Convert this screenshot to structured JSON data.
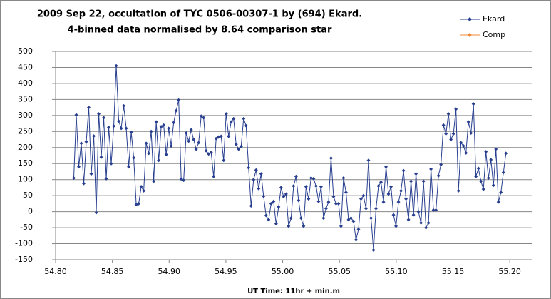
{
  "chart_data": {
    "type": "line",
    "title": "2009 Sep 22, occultation of TYC 0506-00307-1 by (694) Ekard.",
    "subtitle": "4-binned data normalised by 8.64 comparison star",
    "x_label": "UT Time: 11hr + min.m",
    "xlim": [
      54.8,
      55.22
    ],
    "xticks": [
      {
        "value": 54.8,
        "label": "54.80"
      },
      {
        "value": 54.85,
        "label": "54.85"
      },
      {
        "value": 54.9,
        "label": "54.90"
      },
      {
        "value": 54.95,
        "label": "54.95"
      },
      {
        "value": 55.0,
        "label": "55.00"
      },
      {
        "value": 55.05,
        "label": "55.05"
      },
      {
        "value": 55.1,
        "label": "55.10"
      },
      {
        "value": 55.15,
        "label": "55.15"
      },
      {
        "value": 55.2,
        "label": "55.20"
      }
    ],
    "ylim": [
      -150,
      500
    ],
    "yticks": [
      -150,
      -100,
      -50,
      0,
      50,
      100,
      150,
      200,
      250,
      300,
      350,
      400,
      450,
      500
    ],
    "grid": true,
    "legend": "top-right",
    "x": [
      54.816,
      54.8182,
      54.8204,
      54.8226,
      54.8248,
      54.827,
      54.8292,
      54.8314,
      54.8336,
      54.8358,
      54.838,
      54.8402,
      54.8424,
      54.8446,
      54.8468,
      54.849,
      54.8512,
      54.8534,
      54.8556,
      54.8578,
      54.86,
      54.8622,
      54.8644,
      54.8666,
      54.8688,
      54.871,
      54.8732,
      54.8754,
      54.8776,
      54.8798,
      54.882,
      54.8842,
      54.8864,
      54.8886,
      54.8908,
      54.893,
      54.8952,
      54.8974,
      54.8996,
      54.9018,
      54.904,
      54.9062,
      54.9084,
      54.9106,
      54.9128,
      54.915,
      54.9172,
      54.9194,
      54.9216,
      54.9238,
      54.926,
      54.9282,
      54.9304,
      54.9326,
      54.9348,
      54.937,
      54.9392,
      54.9414,
      54.9436,
      54.9458,
      54.948,
      54.9502,
      54.9524,
      54.9546,
      54.9568,
      54.959,
      54.9612,
      54.9634,
      54.9656,
      54.9678,
      54.97,
      54.9722,
      54.9744,
      54.9766,
      54.9788,
      54.981,
      54.9832,
      54.9854,
      54.9876,
      54.9898,
      54.992,
      54.9942,
      54.9964,
      54.9986,
      55.0008,
      55.003,
      55.0052,
      55.0074,
      55.0096,
      55.0118,
      55.014,
      55.0162,
      55.0184,
      55.0206,
      55.0228,
      55.025,
      55.0272,
      55.0294,
      55.0316,
      55.0338,
      55.036,
      55.0382,
      55.0404,
      55.0426,
      55.0448,
      55.047,
      55.0492,
      55.0514,
      55.0536,
      55.0558,
      55.058,
      55.0602,
      55.0624,
      55.0646,
      55.0668,
      55.069,
      55.0712,
      55.0734,
      55.0756,
      55.0778,
      55.08,
      55.0822,
      55.0844,
      55.0866,
      55.0888,
      55.091,
      55.0932,
      55.0954,
      55.0976,
      55.0998,
      55.102,
      55.1042,
      55.1064,
      55.1086,
      55.1108,
      55.113,
      55.1152,
      55.1174,
      55.1196,
      55.1218,
      55.124,
      55.1262,
      55.1284,
      55.1306,
      55.1328,
      55.135,
      55.1372,
      55.1394,
      55.1416,
      55.1438,
      55.146,
      55.1482,
      55.1504,
      55.1526,
      55.1548,
      55.157,
      55.1592,
      55.1614,
      55.1636,
      55.1658,
      55.168,
      55.1702,
      55.1724,
      55.1746,
      55.1768,
      55.179,
      55.1812,
      55.1834,
      55.1856,
      55.1878,
      55.19,
      55.1922,
      55.1944,
      55.1966
    ],
    "series": [
      {
        "name": "Ekard",
        "color": "#283f8f",
        "values": [
          105,
          302,
          140,
          213,
          88,
          218,
          325,
          118,
          236,
          -3,
          305,
          170,
          293,
          103,
          263,
          150,
          267,
          455,
          282,
          260,
          330,
          260,
          140,
          248,
          168,
          22,
          25,
          78,
          65,
          213,
          182,
          250,
          95,
          280,
          160,
          265,
          270,
          178,
          260,
          205,
          278,
          315,
          348,
          102,
          98,
          245,
          220,
          255,
          225,
          195,
          215,
          298,
          293,
          190,
          180,
          185,
          110,
          228,
          233,
          235,
          160,
          305,
          235,
          280,
          290,
          210,
          195,
          203,
          290,
          268,
          137,
          18,
          100,
          130,
          72,
          118,
          48,
          -12,
          -25,
          25,
          32,
          -38,
          15,
          75,
          47,
          55,
          -45,
          -20,
          80,
          110,
          35,
          -20,
          -45,
          78,
          40,
          105,
          103,
          80,
          32,
          78,
          -20,
          10,
          30,
          167,
          47,
          25,
          25,
          -45,
          105,
          60,
          -25,
          -20,
          -30,
          -88,
          -55,
          40,
          50,
          10,
          160,
          -20,
          -120,
          10,
          80,
          92,
          30,
          140,
          55,
          78,
          -10,
          -45,
          30,
          65,
          128,
          40,
          -25,
          95,
          -10,
          118,
          0,
          -35,
          95,
          -50,
          -35,
          133,
          5,
          5,
          112,
          147,
          270,
          243,
          305,
          225,
          243,
          320,
          65,
          215,
          205,
          183,
          280,
          245,
          336,
          110,
          135,
          95,
          70,
          187,
          105,
          162,
          82,
          195,
          30,
          60,
          122,
          182
        ]
      },
      {
        "name": "Comp",
        "color": "#f0883a"
      }
    ]
  }
}
